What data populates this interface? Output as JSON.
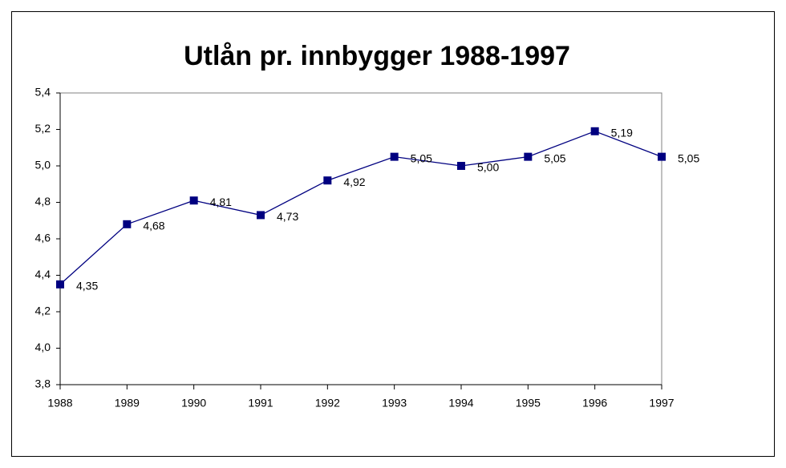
{
  "chart_data": {
    "type": "line",
    "title": "Utlån pr. innbygger 1988-1997",
    "categories": [
      "1988",
      "1989",
      "1990",
      "1991",
      "1992",
      "1993",
      "1994",
      "1995",
      "1996",
      "1997"
    ],
    "series": [
      {
        "color": "#000080",
        "values": [
          4.35,
          4.68,
          4.81,
          4.73,
          4.92,
          5.05,
          5.0,
          5.05,
          5.19,
          5.05
        ],
        "value_labels": [
          "4,35",
          "4,68",
          "4,81",
          "4,73",
          "4,92",
          "5,05",
          "5,00",
          "5,05",
          "5,19",
          "5,05"
        ]
      }
    ],
    "ylim": [
      3.8,
      5.4
    ],
    "yticks": [
      {
        "value": 3.8,
        "label": "3,8"
      },
      {
        "value": 4.0,
        "label": "4,0"
      },
      {
        "value": 4.2,
        "label": "4,2"
      },
      {
        "value": 4.4,
        "label": "4,4"
      },
      {
        "value": 4.6,
        "label": "4,6"
      },
      {
        "value": 4.8,
        "label": "4,8"
      },
      {
        "value": 5.0,
        "label": "5,0"
      },
      {
        "value": 5.2,
        "label": "5,2"
      },
      {
        "value": 5.4,
        "label": "5,4"
      }
    ]
  }
}
